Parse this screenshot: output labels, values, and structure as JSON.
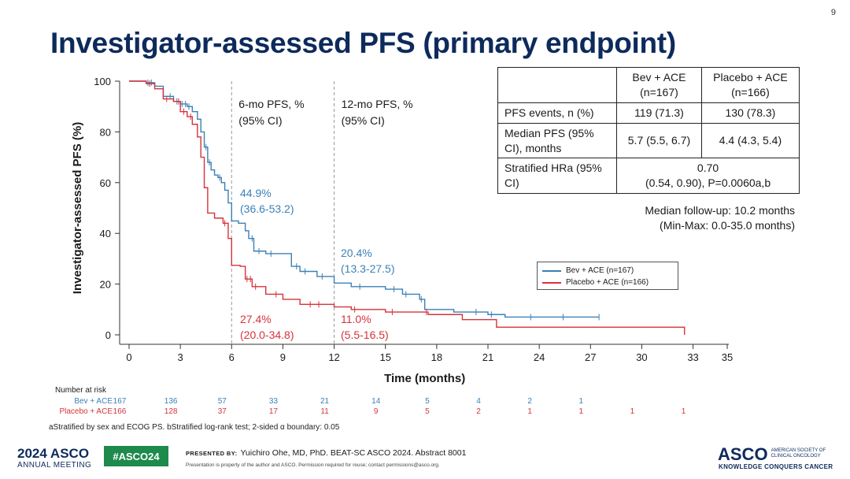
{
  "page_number": "9",
  "title": "Investigator-assessed PFS (primary endpoint)",
  "colors": {
    "bev": "#3b80b6",
    "placebo": "#d6333a",
    "title": "#0d2a5c",
    "hashtag_bg": "#1e8a4c"
  },
  "table": {
    "col1_header": "Bev + ACE (n=167)",
    "col2_header": "Placebo + ACE (n=166)",
    "rows": [
      {
        "label": "PFS events, n (%)",
        "bev": "119 (71.3)",
        "placebo": "130 (78.3)"
      },
      {
        "label": "Median PFS (95% CI), months",
        "bev": "5.7 (5.5, 6.7)",
        "placebo": "4.4 (4.3, 5.4)"
      },
      {
        "label": "Stratified HRa (95% CI)",
        "combined": "0.70",
        "combined_ci": "(0.54, 0.90), P=0.0060a,b"
      }
    ]
  },
  "followup": {
    "line1": "Median follow-up: 10.2 months",
    "line2": "(Min-Max: 0.0-35.0 months)"
  },
  "legend": {
    "bev": "Bev + ACE (n=167)",
    "placebo": "Placebo + ACE (n=166)"
  },
  "chart_data": {
    "type": "line",
    "title": "",
    "xlabel": "Time (months)",
    "ylabel": "Investigator-assessed PFS (%)",
    "xlim": [
      0,
      35
    ],
    "ylim": [
      0,
      100
    ],
    "xticks": [
      0,
      3,
      6,
      9,
      12,
      15,
      18,
      21,
      24,
      27,
      30,
      33,
      35
    ],
    "yticks": [
      0,
      20,
      40,
      60,
      80,
      100
    ],
    "reference_lines": [
      {
        "x": 6,
        "label_l1": "6-mo PFS, %",
        "label_l2": "(95% CI)"
      },
      {
        "x": 12,
        "label_l1": "12-mo PFS, %",
        "label_l2": "(95% CI)"
      }
    ],
    "annotations": [
      {
        "series": "bev",
        "x": 6,
        "value": "44.9%",
        "ci": "(36.6-53.2)"
      },
      {
        "series": "placebo",
        "x": 6,
        "value": "27.4%",
        "ci": "(20.0-34.8)"
      },
      {
        "series": "bev",
        "x": 12,
        "value": "20.4%",
        "ci": "(13.3-27.5)"
      },
      {
        "series": "placebo",
        "x": 12,
        "value": "11.0%",
        "ci": "(5.5-16.5)"
      }
    ],
    "series": [
      {
        "name": "Bev + ACE (n=167)",
        "key": "bev",
        "points": [
          [
            0,
            100
          ],
          [
            1,
            99.4
          ],
          [
            1.5,
            98
          ],
          [
            2,
            94
          ],
          [
            2.6,
            92
          ],
          [
            3,
            91
          ],
          [
            3.4,
            90
          ],
          [
            3.7,
            88
          ],
          [
            4,
            85
          ],
          [
            4.2,
            80
          ],
          [
            4.4,
            74
          ],
          [
            4.6,
            68
          ],
          [
            4.8,
            65
          ],
          [
            5,
            63
          ],
          [
            5.2,
            62
          ],
          [
            5.4,
            60
          ],
          [
            5.6,
            57
          ],
          [
            5.8,
            52
          ],
          [
            6,
            44.9
          ],
          [
            6.4,
            44
          ],
          [
            6.8,
            41
          ],
          [
            7,
            38
          ],
          [
            7.3,
            33
          ],
          [
            8,
            32
          ],
          [
            9.5,
            27
          ],
          [
            10,
            25
          ],
          [
            11,
            23
          ],
          [
            12,
            20.4
          ],
          [
            13,
            19
          ],
          [
            15,
            18
          ],
          [
            16,
            16
          ],
          [
            17,
            14
          ],
          [
            17.3,
            10
          ],
          [
            19,
            9
          ],
          [
            21,
            8
          ],
          [
            22,
            7
          ],
          [
            27.5,
            7
          ]
        ],
        "censor_x": [
          1.1,
          1.3,
          2.4,
          2.8,
          3.1,
          3.3,
          3.5,
          4.5,
          4.7,
          5.3,
          7.2,
          7.6,
          8.3,
          9.8,
          10.3,
          11.3,
          13.5,
          15.5,
          16.2,
          17.1,
          20.3,
          21.2,
          23.5,
          25.4,
          27.5
        ]
      },
      {
        "name": "Placebo + ACE (n=166)",
        "key": "placebo",
        "points": [
          [
            0,
            100
          ],
          [
            1,
            99
          ],
          [
            1.5,
            97
          ],
          [
            2,
            93
          ],
          [
            2.6,
            92
          ],
          [
            3,
            88
          ],
          [
            3.4,
            86
          ],
          [
            3.7,
            83
          ],
          [
            4,
            78
          ],
          [
            4.2,
            70
          ],
          [
            4.4,
            58
          ],
          [
            4.6,
            48
          ],
          [
            5,
            46
          ],
          [
            5.5,
            44
          ],
          [
            5.8,
            38
          ],
          [
            6,
            27.4
          ],
          [
            6.5,
            27
          ],
          [
            6.8,
            22
          ],
          [
            7.2,
            19
          ],
          [
            8,
            16
          ],
          [
            9,
            14
          ],
          [
            10,
            12
          ],
          [
            12,
            11
          ],
          [
            13,
            10
          ],
          [
            15,
            9
          ],
          [
            17.5,
            8
          ],
          [
            19.5,
            6
          ],
          [
            21.5,
            3
          ],
          [
            32.5,
            3
          ],
          [
            32.5,
            0
          ]
        ],
        "censor_x": [
          1.2,
          2.2,
          2.9,
          3.2,
          3.6,
          5.6,
          6.9,
          7.1,
          7.4,
          8.6,
          10.6,
          11.1,
          13.2,
          15.4,
          17.4
        ]
      }
    ],
    "number_at_risk": {
      "header": "Number at risk",
      "times": [
        0,
        3,
        6,
        9,
        12,
        15,
        18,
        21,
        24,
        27,
        30,
        33
      ],
      "rows": [
        {
          "label": "Bev + ACE",
          "key": "bev",
          "values": [
            "167",
            "136",
            "57",
            "33",
            "21",
            "14",
            "5",
            "4",
            "2",
            "1",
            "",
            ""
          ]
        },
        {
          "label": "Placebo + ACE",
          "key": "placebo",
          "values": [
            "166",
            "128",
            "37",
            "17",
            "11",
            "9",
            "5",
            "2",
            "1",
            "1",
            "1",
            "1"
          ]
        }
      ]
    }
  },
  "footnote": "aStratified by sex and ECOG PS. bStratified log-rank test; 2-sided α boundary: 0.05",
  "footer": {
    "meeting_year": "2024",
    "meeting_brand": "ASCO",
    "meeting_sub": "ANNUAL MEETING",
    "hashtag": "#ASCO24",
    "presented_by": "PRESENTED BY:",
    "presenter": "Yuichiro Ohe, MD, PhD. BEAT-SC ASCO 2024. Abstract 8001",
    "disclaimer": "Presentation is property of the author and ASCO. Permission required for reuse; contact permissions@asco.org.",
    "logo_word": "ASCO",
    "logo_society": "AMERICAN SOCIETY OF CLINICAL ONCOLOGY",
    "logo_tagline": "KNOWLEDGE CONQUERS CANCER"
  }
}
